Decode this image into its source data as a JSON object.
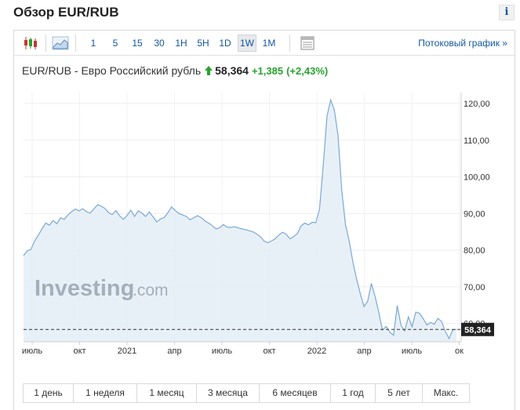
{
  "header": {
    "title": "Обзор EUR/RUB",
    "info_label": "i"
  },
  "toolbar": {
    "intervals": [
      "1",
      "5",
      "15",
      "30",
      "1H",
      "5H",
      "1D",
      "1W",
      "1M"
    ],
    "active_interval": "1W",
    "stream_link": "Потоковый график »"
  },
  "quote": {
    "name": "EUR/RUB - Евро Российский рубль",
    "last": "58,364",
    "change": "+1,385",
    "change_pct": "(+2,43%)"
  },
  "watermark": {
    "brand": "Investing",
    "suffix": ".com"
  },
  "periods": [
    "1 день",
    "1 неделя",
    "1 месяц",
    "3 месяца",
    "6 месяцев",
    "1 год",
    "5 лет",
    "Макс."
  ],
  "colors": {
    "line": "#7ba9d6",
    "area": "#e4edf6",
    "link": "#1256a0",
    "positive": "#27a32f",
    "price_box": "#222222"
  },
  "chart_data": {
    "type": "area",
    "x_tick_labels": [
      "июль",
      "окт",
      "2021",
      "апр",
      "июль",
      "окт",
      "2022",
      "апр",
      "июль",
      "ок"
    ],
    "y_tick_labels": [
      "60,00",
      "70,00",
      "80,00",
      "90,00",
      "100,00",
      "110,00",
      "120,00"
    ],
    "ylim": [
      55,
      123
    ],
    "current_value_label": "58,364",
    "current_value": 58.364,
    "y": [
      78.5,
      79.8,
      80.2,
      82.5,
      84.1,
      85.8,
      87.4,
      86.8,
      88.1,
      87.2,
      88.8,
      88.4,
      89.6,
      90.5,
      91.2,
      90.7,
      91.3,
      90.5,
      90.1,
      91.2,
      92.4,
      92.0,
      91.4,
      90.2,
      89.7,
      90.8,
      89.3,
      88.4,
      89.5,
      90.9,
      89.2,
      90.7,
      90.1,
      89.2,
      90.4,
      89.1,
      87.7,
      88.5,
      88.9,
      90.2,
      91.8,
      90.8,
      90.0,
      89.6,
      89.2,
      88.3,
      88.8,
      89.4,
      88.9,
      88.0,
      87.4,
      86.7,
      85.8,
      86.1,
      87.0,
      86.3,
      86.2,
      86.4,
      86.1,
      85.8,
      85.6,
      85.3,
      85.0,
      84.4,
      83.7,
      82.5,
      82.0,
      82.5,
      83.1,
      84.1,
      84.9,
      84.3,
      83.1,
      83.7,
      84.5,
      86.6,
      87.4,
      86.9,
      87.6,
      87.5,
      91.2,
      103.3,
      116.5,
      121.0,
      118.2,
      111.3,
      96.4,
      86.9,
      82.5,
      76.8,
      72.2,
      68.2,
      64.6,
      66.1,
      70.9,
      67.4,
      63.1,
      58.2,
      59.2,
      57.6,
      56.8,
      64.9,
      59.6,
      57.9,
      61.8,
      59.1,
      63.1,
      62.8,
      61.3,
      59.6,
      60.3,
      59.8,
      61.4,
      60.5,
      57.8,
      55.9,
      58.3,
      58.4
    ]
  }
}
